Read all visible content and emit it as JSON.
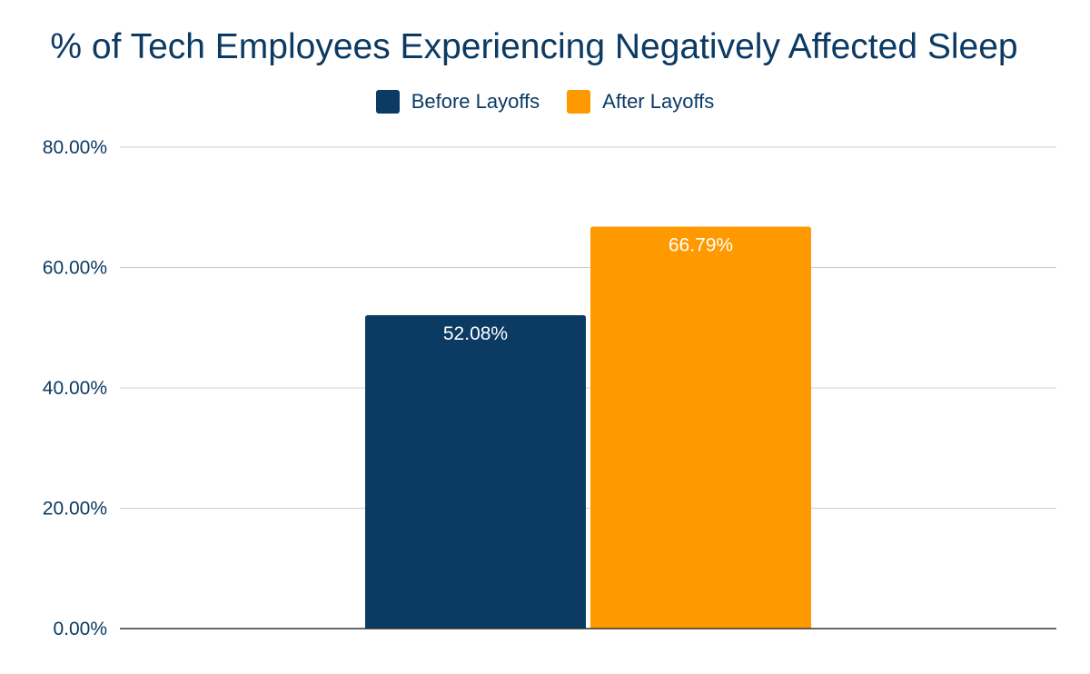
{
  "chart_data": {
    "type": "bar",
    "title": "% of Tech Employees Experiencing Negatively Affected Sleep",
    "categories": [
      ""
    ],
    "series": [
      {
        "name": "Before Layoffs",
        "values": [
          52.08
        ],
        "label": "52.08%",
        "color": "#0b3a63"
      },
      {
        "name": "After Layoffs",
        "values": [
          66.79
        ],
        "label": "66.79%",
        "color": "#ff9900"
      }
    ],
    "ylim": [
      0,
      80
    ],
    "yticks": [
      0,
      20,
      40,
      60,
      80
    ],
    "ytick_labels": [
      "0.00%",
      "20.00%",
      "40.00%",
      "60.00%",
      "80.00%"
    ],
    "xlabel": "",
    "ylabel": "",
    "legend_position": "top",
    "grid": true
  }
}
